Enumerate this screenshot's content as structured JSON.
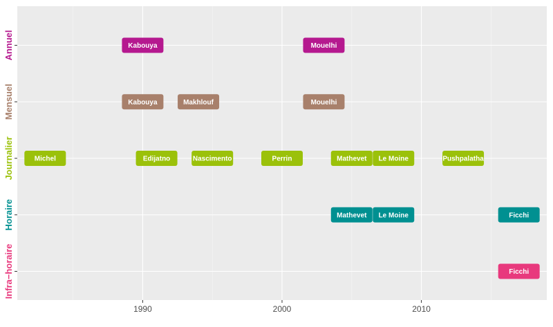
{
  "chart_data": {
    "type": "scatter",
    "title": "",
    "xlabel": "",
    "ylabel": "",
    "xlim": [
      1981,
      2019
    ],
    "x_ticks": [
      1990,
      2000,
      2010
    ],
    "x_minor_ticks": [
      1985,
      1995,
      2005,
      2015
    ],
    "categories": [
      "Infra−horaire",
      "Horaire",
      "Journalier",
      "Mensuel",
      "Annuel"
    ],
    "category_colors": {
      "Annuel": "#b5198f",
      "Mensuel": "#a8806b",
      "Journalier": "#9bc10a",
      "Horaire": "#009091",
      "Infra−horaire": "#e8397d"
    },
    "grid": true,
    "legend": "none",
    "points": [
      {
        "label": "Kabouya",
        "x": 1990,
        "category": "Annuel"
      },
      {
        "label": "Mouelhi",
        "x": 2003,
        "category": "Annuel"
      },
      {
        "label": "Kabouya",
        "x": 1990,
        "category": "Mensuel"
      },
      {
        "label": "Makhlouf",
        "x": 1994,
        "category": "Mensuel"
      },
      {
        "label": "Mouelhi",
        "x": 2003,
        "category": "Mensuel"
      },
      {
        "label": "Michel",
        "x": 1983,
        "category": "Journalier"
      },
      {
        "label": "Edijatno",
        "x": 1991,
        "category": "Journalier"
      },
      {
        "label": "Nascimento",
        "x": 1995,
        "category": "Journalier"
      },
      {
        "label": "Perrin",
        "x": 2000,
        "category": "Journalier"
      },
      {
        "label": "Mathevet",
        "x": 2005,
        "category": "Journalier"
      },
      {
        "label": "Le Moine",
        "x": 2008,
        "category": "Journalier"
      },
      {
        "label": "Pushpalatha",
        "x": 2013,
        "category": "Journalier"
      },
      {
        "label": "Mathevet",
        "x": 2005,
        "category": "Horaire"
      },
      {
        "label": "Le Moine",
        "x": 2008,
        "category": "Horaire"
      },
      {
        "label": "Ficchi",
        "x": 2017,
        "category": "Horaire"
      },
      {
        "label": "Ficchi",
        "x": 2017,
        "category": "Infra−horaire"
      }
    ]
  }
}
